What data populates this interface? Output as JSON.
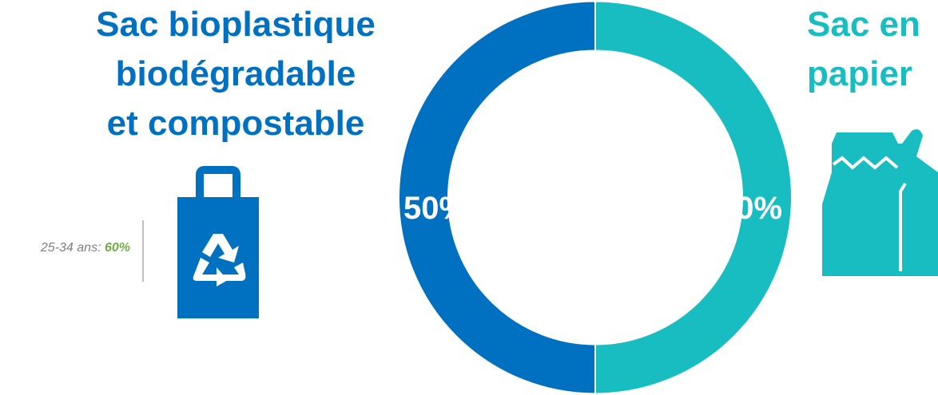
{
  "chart_data": {
    "type": "pie",
    "donut": true,
    "slices": [
      {
        "label": "Sac bioplastique biodégradable et compostable",
        "value": 50,
        "display": "50%",
        "color": "#0070c0"
      },
      {
        "label": "Sac en papier",
        "value": 50,
        "display": "50%",
        "color": "#17bdc0"
      }
    ]
  },
  "left_title": {
    "line1": "Sac bioplastique",
    "line2": "biodégradable",
    "line3": "et compostable"
  },
  "right_title": {
    "line1": "Sac en",
    "line2": "papier"
  },
  "side_note": {
    "label": "25-34 ans: ",
    "value": "60%"
  },
  "icons": {
    "left": "recycling-bag-icon",
    "right": "paper-bag-icon"
  },
  "colors": {
    "blue": "#0070c0",
    "teal": "#17bdc0",
    "note_gray": "#808080",
    "note_green": "#70ad47"
  }
}
